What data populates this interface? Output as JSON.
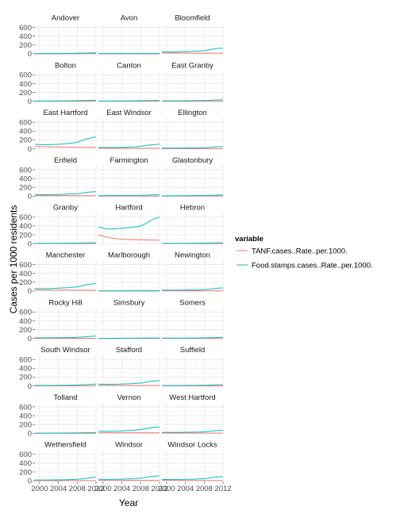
{
  "chart_data": {
    "type": "line",
    "xlabel": "Year",
    "ylabel": "Cases per 1000 residents",
    "xlim": [
      1999,
      2012
    ],
    "ylim": [
      -20,
      700
    ],
    "x_ticks": [
      2000,
      2004,
      2008,
      2012
    ],
    "y_ticks": [
      0,
      200,
      400,
      600
    ],
    "grid": true,
    "legend": {
      "title": "variable",
      "position": "right",
      "entries": [
        {
          "name": "TANF.cases..Rate..per.1000.",
          "color": "#F8766D"
        },
        {
          "name": "Food.stamps.cases..Rate..per.1000.",
          "color": "#00BFC4"
        }
      ]
    },
    "x": [
      1999,
      2000,
      2001,
      2002,
      2003,
      2004,
      2005,
      2006,
      2007,
      2008,
      2009,
      2010,
      2011,
      2012
    ],
    "facets": [
      {
        "name": "Andover",
        "tanf": [
          2,
          2,
          2,
          2,
          2,
          2,
          2,
          2,
          2,
          2,
          2,
          2,
          2,
          2
        ],
        "food": [
          5,
          5,
          5,
          6,
          6,
          7,
          8,
          10,
          12,
          14,
          16,
          18,
          22,
          24
        ]
      },
      {
        "name": "Avon",
        "tanf": [
          1,
          1,
          1,
          1,
          1,
          1,
          1,
          1,
          1,
          1,
          1,
          1,
          1,
          1
        ],
        "food": [
          4,
          4,
          4,
          4,
          4,
          4,
          5,
          5,
          5,
          6,
          6,
          7,
          8,
          9
        ]
      },
      {
        "name": "Bloomfield",
        "tanf": [
          20,
          20,
          19,
          18,
          18,
          18,
          17,
          17,
          16,
          16,
          16,
          16,
          15,
          15
        ],
        "food": [
          50,
          45,
          40,
          45,
          50,
          55,
          55,
          60,
          65,
          70,
          90,
          110,
          125,
          130
        ]
      },
      {
        "name": "Bolton",
        "tanf": [
          2,
          2,
          2,
          2,
          2,
          2,
          2,
          2,
          2,
          2,
          2,
          2,
          2,
          2
        ],
        "food": [
          5,
          5,
          5,
          6,
          7,
          8,
          9,
          10,
          12,
          14,
          17,
          20,
          24,
          26
        ]
      },
      {
        "name": "Canton",
        "tanf": [
          1,
          1,
          1,
          1,
          1,
          1,
          1,
          1,
          1,
          1,
          1,
          1,
          1,
          1
        ],
        "food": [
          5,
          5,
          5,
          6,
          7,
          8,
          9,
          10,
          11,
          13,
          15,
          17,
          19,
          20
        ]
      },
      {
        "name": "East Granby",
        "tanf": [
          2,
          2,
          2,
          2,
          2,
          2,
          2,
          2,
          2,
          2,
          2,
          2,
          2,
          2
        ],
        "food": [
          10,
          10,
          10,
          10,
          11,
          12,
          13,
          14,
          16,
          18,
          22,
          26,
          30,
          32
        ]
      },
      {
        "name": "East Hartford",
        "tanf": [
          50,
          48,
          45,
          42,
          40,
          38,
          37,
          36,
          35,
          34,
          33,
          32,
          31,
          30
        ],
        "food": [
          100,
          95,
          90,
          92,
          95,
          100,
          110,
          120,
          130,
          150,
          190,
          220,
          250,
          265
        ]
      },
      {
        "name": "East Windsor",
        "tanf": [
          10,
          10,
          9,
          9,
          9,
          9,
          9,
          9,
          8,
          8,
          8,
          8,
          8,
          8
        ],
        "food": [
          30,
          28,
          27,
          28,
          30,
          32,
          35,
          40,
          45,
          55,
          70,
          85,
          95,
          100
        ]
      },
      {
        "name": "Ellington",
        "tanf": [
          3,
          3,
          3,
          3,
          3,
          3,
          3,
          3,
          3,
          3,
          3,
          3,
          3,
          3
        ],
        "food": [
          15,
          14,
          14,
          14,
          15,
          16,
          17,
          18,
          20,
          22,
          30,
          38,
          45,
          50
        ]
      },
      {
        "name": "Enfield",
        "tanf": [
          12,
          12,
          11,
          11,
          11,
          11,
          10,
          10,
          10,
          10,
          10,
          10,
          10,
          10
        ],
        "food": [
          35,
          33,
          32,
          33,
          35,
          38,
          40,
          45,
          50,
          55,
          70,
          85,
          95,
          100
        ]
      },
      {
        "name": "Farmington",
        "tanf": [
          3,
          3,
          3,
          3,
          3,
          3,
          3,
          3,
          3,
          3,
          3,
          3,
          3,
          3
        ],
        "food": [
          12,
          12,
          12,
          12,
          13,
          14,
          15,
          16,
          17,
          18,
          22,
          26,
          29,
          30
        ]
      },
      {
        "name": "Glastonbury",
        "tanf": [
          2,
          2,
          2,
          2,
          2,
          2,
          2,
          2,
          2,
          2,
          2,
          2,
          2,
          2
        ],
        "food": [
          8,
          8,
          8,
          8,
          9,
          10,
          11,
          12,
          13,
          15,
          18,
          22,
          26,
          28
        ]
      },
      {
        "name": "Granby",
        "tanf": [
          1,
          1,
          1,
          1,
          1,
          1,
          1,
          1,
          1,
          1,
          1,
          1,
          1,
          1
        ],
        "food": [
          6,
          6,
          6,
          6,
          7,
          7,
          8,
          9,
          10,
          11,
          13,
          15,
          17,
          18
        ]
      },
      {
        "name": "Hartford",
        "tanf": [
          200,
          170,
          140,
          120,
          110,
          100,
          95,
          90,
          90,
          85,
          85,
          80,
          78,
          75
        ],
        "food": [
          380,
          350,
          330,
          330,
          340,
          350,
          360,
          370,
          380,
          400,
          450,
          520,
          570,
          600
        ]
      },
      {
        "name": "Hebron",
        "tanf": [
          2,
          2,
          2,
          2,
          2,
          2,
          2,
          2,
          2,
          2,
          2,
          2,
          2,
          2
        ],
        "food": [
          5,
          5,
          5,
          6,
          6,
          7,
          8,
          9,
          10,
          11,
          13,
          15,
          17,
          18
        ]
      },
      {
        "name": "Manchester",
        "tanf": [
          25,
          24,
          23,
          22,
          21,
          21,
          20,
          20,
          19,
          19,
          19,
          18,
          18,
          18
        ],
        "food": [
          60,
          55,
          52,
          55,
          60,
          65,
          70,
          75,
          85,
          95,
          120,
          145,
          160,
          165
        ]
      },
      {
        "name": "Marlborough",
        "tanf": [
          1,
          1,
          1,
          1,
          1,
          1,
          1,
          1,
          1,
          1,
          1,
          1,
          1,
          1
        ],
        "food": [
          4,
          4,
          4,
          4,
          5,
          5,
          5,
          6,
          6,
          7,
          8,
          9,
          10,
          11
        ]
      },
      {
        "name": "Newington",
        "tanf": [
          5,
          5,
          5,
          5,
          5,
          5,
          5,
          5,
          5,
          5,
          5,
          5,
          5,
          5
        ],
        "food": [
          20,
          20,
          19,
          20,
          21,
          22,
          24,
          26,
          28,
          32,
          42,
          55,
          65,
          70
        ]
      },
      {
        "name": "Rocky Hill",
        "tanf": [
          4,
          4,
          4,
          4,
          4,
          4,
          4,
          4,
          4,
          4,
          4,
          4,
          4,
          4
        ],
        "food": [
          15,
          15,
          15,
          15,
          16,
          17,
          18,
          20,
          22,
          25,
          32,
          40,
          48,
          52
        ]
      },
      {
        "name": "Simsbury",
        "tanf": [
          1,
          1,
          1,
          1,
          1,
          1,
          1,
          1,
          1,
          1,
          1,
          1,
          1,
          1
        ],
        "food": [
          4,
          4,
          4,
          4,
          5,
          5,
          5,
          6,
          6,
          7,
          8,
          10,
          11,
          12
        ]
      },
      {
        "name": "Somers",
        "tanf": [
          2,
          2,
          2,
          2,
          2,
          2,
          2,
          2,
          2,
          2,
          2,
          2,
          2,
          2
        ],
        "food": [
          8,
          8,
          8,
          8,
          9,
          9,
          10,
          11,
          12,
          14,
          17,
          20,
          24,
          26
        ]
      },
      {
        "name": "South Windsor",
        "tanf": [
          3,
          3,
          3,
          3,
          3,
          3,
          3,
          3,
          3,
          3,
          3,
          3,
          3,
          3
        ],
        "food": [
          10,
          10,
          10,
          11,
          12,
          13,
          14,
          15,
          17,
          19,
          24,
          30,
          35,
          38
        ]
      },
      {
        "name": "Stafford",
        "tanf": [
          10,
          10,
          10,
          9,
          9,
          9,
          9,
          9,
          9,
          9,
          9,
          9,
          9,
          9
        ],
        "food": [
          40,
          38,
          36,
          37,
          39,
          42,
          45,
          50,
          55,
          62,
          80,
          100,
          115,
          120
        ]
      },
      {
        "name": "Suffield",
        "tanf": [
          2,
          2,
          2,
          2,
          2,
          2,
          2,
          2,
          2,
          2,
          2,
          2,
          2,
          2
        ],
        "food": [
          8,
          8,
          8,
          8,
          9,
          10,
          11,
          12,
          13,
          14,
          18,
          22,
          26,
          28
        ]
      },
      {
        "name": "Tolland",
        "tanf": [
          1,
          1,
          1,
          1,
          1,
          1,
          1,
          1,
          1,
          1,
          1,
          1,
          1,
          1
        ],
        "food": [
          5,
          5,
          5,
          5,
          6,
          6,
          7,
          8,
          9,
          10,
          12,
          14,
          16,
          17
        ]
      },
      {
        "name": "Vernon",
        "tanf": [
          15,
          15,
          14,
          14,
          14,
          14,
          13,
          13,
          13,
          13,
          13,
          13,
          13,
          13
        ],
        "food": [
          50,
          48,
          46,
          48,
          50,
          55,
          60,
          65,
          75,
          85,
          105,
          125,
          140,
          145
        ]
      },
      {
        "name": "West Hartford",
        "tanf": [
          5,
          5,
          5,
          5,
          5,
          5,
          5,
          5,
          5,
          5,
          5,
          5,
          5,
          5
        ],
        "food": [
          20,
          20,
          20,
          21,
          22,
          24,
          26,
          28,
          30,
          35,
          45,
          55,
          65,
          70
        ]
      },
      {
        "name": "Wethersfield",
        "tanf": [
          4,
          4,
          4,
          4,
          4,
          4,
          4,
          4,
          4,
          4,
          4,
          4,
          4,
          4
        ],
        "food": [
          18,
          17,
          17,
          18,
          19,
          20,
          22,
          25,
          28,
          32,
          42,
          55,
          68,
          75
        ]
      },
      {
        "name": "Windsor",
        "tanf": [
          10,
          10,
          9,
          9,
          9,
          9,
          9,
          9,
          8,
          8,
          8,
          8,
          8,
          8
        ],
        "food": [
          35,
          33,
          31,
          32,
          34,
          36,
          40,
          45,
          50,
          58,
          75,
          92,
          105,
          110
        ]
      },
      {
        "name": "Windsor Locks",
        "tanf": [
          8,
          8,
          8,
          8,
          8,
          8,
          7,
          7,
          7,
          7,
          7,
          7,
          7,
          7
        ],
        "food": [
          30,
          28,
          27,
          28,
          30,
          32,
          35,
          38,
          42,
          48,
          60,
          75,
          88,
          92
        ]
      }
    ]
  }
}
